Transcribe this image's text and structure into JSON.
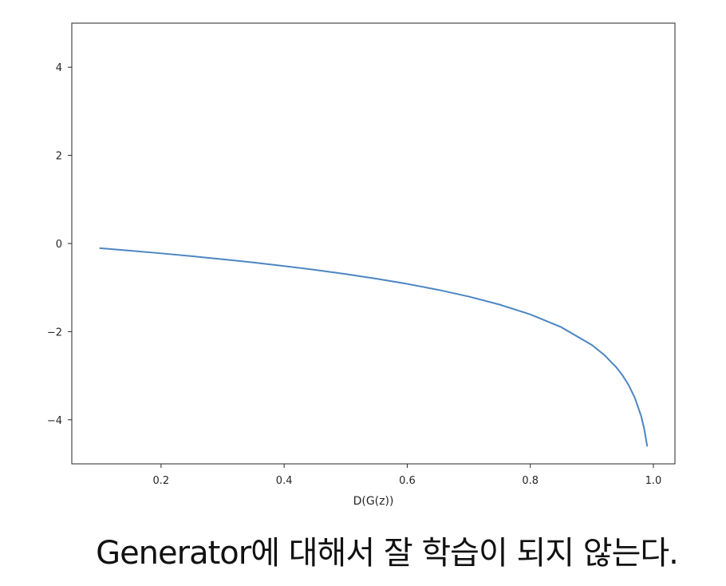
{
  "chart_data": {
    "type": "line",
    "title": "",
    "xlabel": "D(G(z))",
    "ylabel": "",
    "xlim": [
      0.055,
      1.035
    ],
    "ylim": [
      -5.0,
      5.0
    ],
    "xticks": [
      0.2,
      0.4,
      0.6,
      0.8,
      1.0
    ],
    "xtick_labels": [
      "0.2",
      "0.4",
      "0.6",
      "0.8",
      "1.0"
    ],
    "yticks": [
      -4,
      -2,
      0,
      2,
      4
    ],
    "ytick_labels": [
      "−4",
      "−2",
      "0",
      "2",
      "4"
    ],
    "grid": false,
    "series": [
      {
        "color": "#4c86c2",
        "x": [
          0.1,
          0.15,
          0.2,
          0.25,
          0.3,
          0.35,
          0.4,
          0.45,
          0.5,
          0.55,
          0.6,
          0.65,
          0.7,
          0.75,
          0.8,
          0.85,
          0.9,
          0.92,
          0.94,
          0.95,
          0.96,
          0.97,
          0.98,
          0.985,
          0.99
        ],
        "y": [
          -0.105,
          -0.163,
          -0.223,
          -0.288,
          -0.357,
          -0.431,
          -0.511,
          -0.598,
          -0.693,
          -0.799,
          -0.916,
          -1.05,
          -1.204,
          -1.386,
          -1.609,
          -1.897,
          -2.303,
          -2.526,
          -2.813,
          -2.996,
          -3.219,
          -3.507,
          -3.912,
          -4.2,
          -4.605
        ]
      }
    ]
  },
  "caption": "Generator에 대해서 잘 학습이 되지 않는다."
}
